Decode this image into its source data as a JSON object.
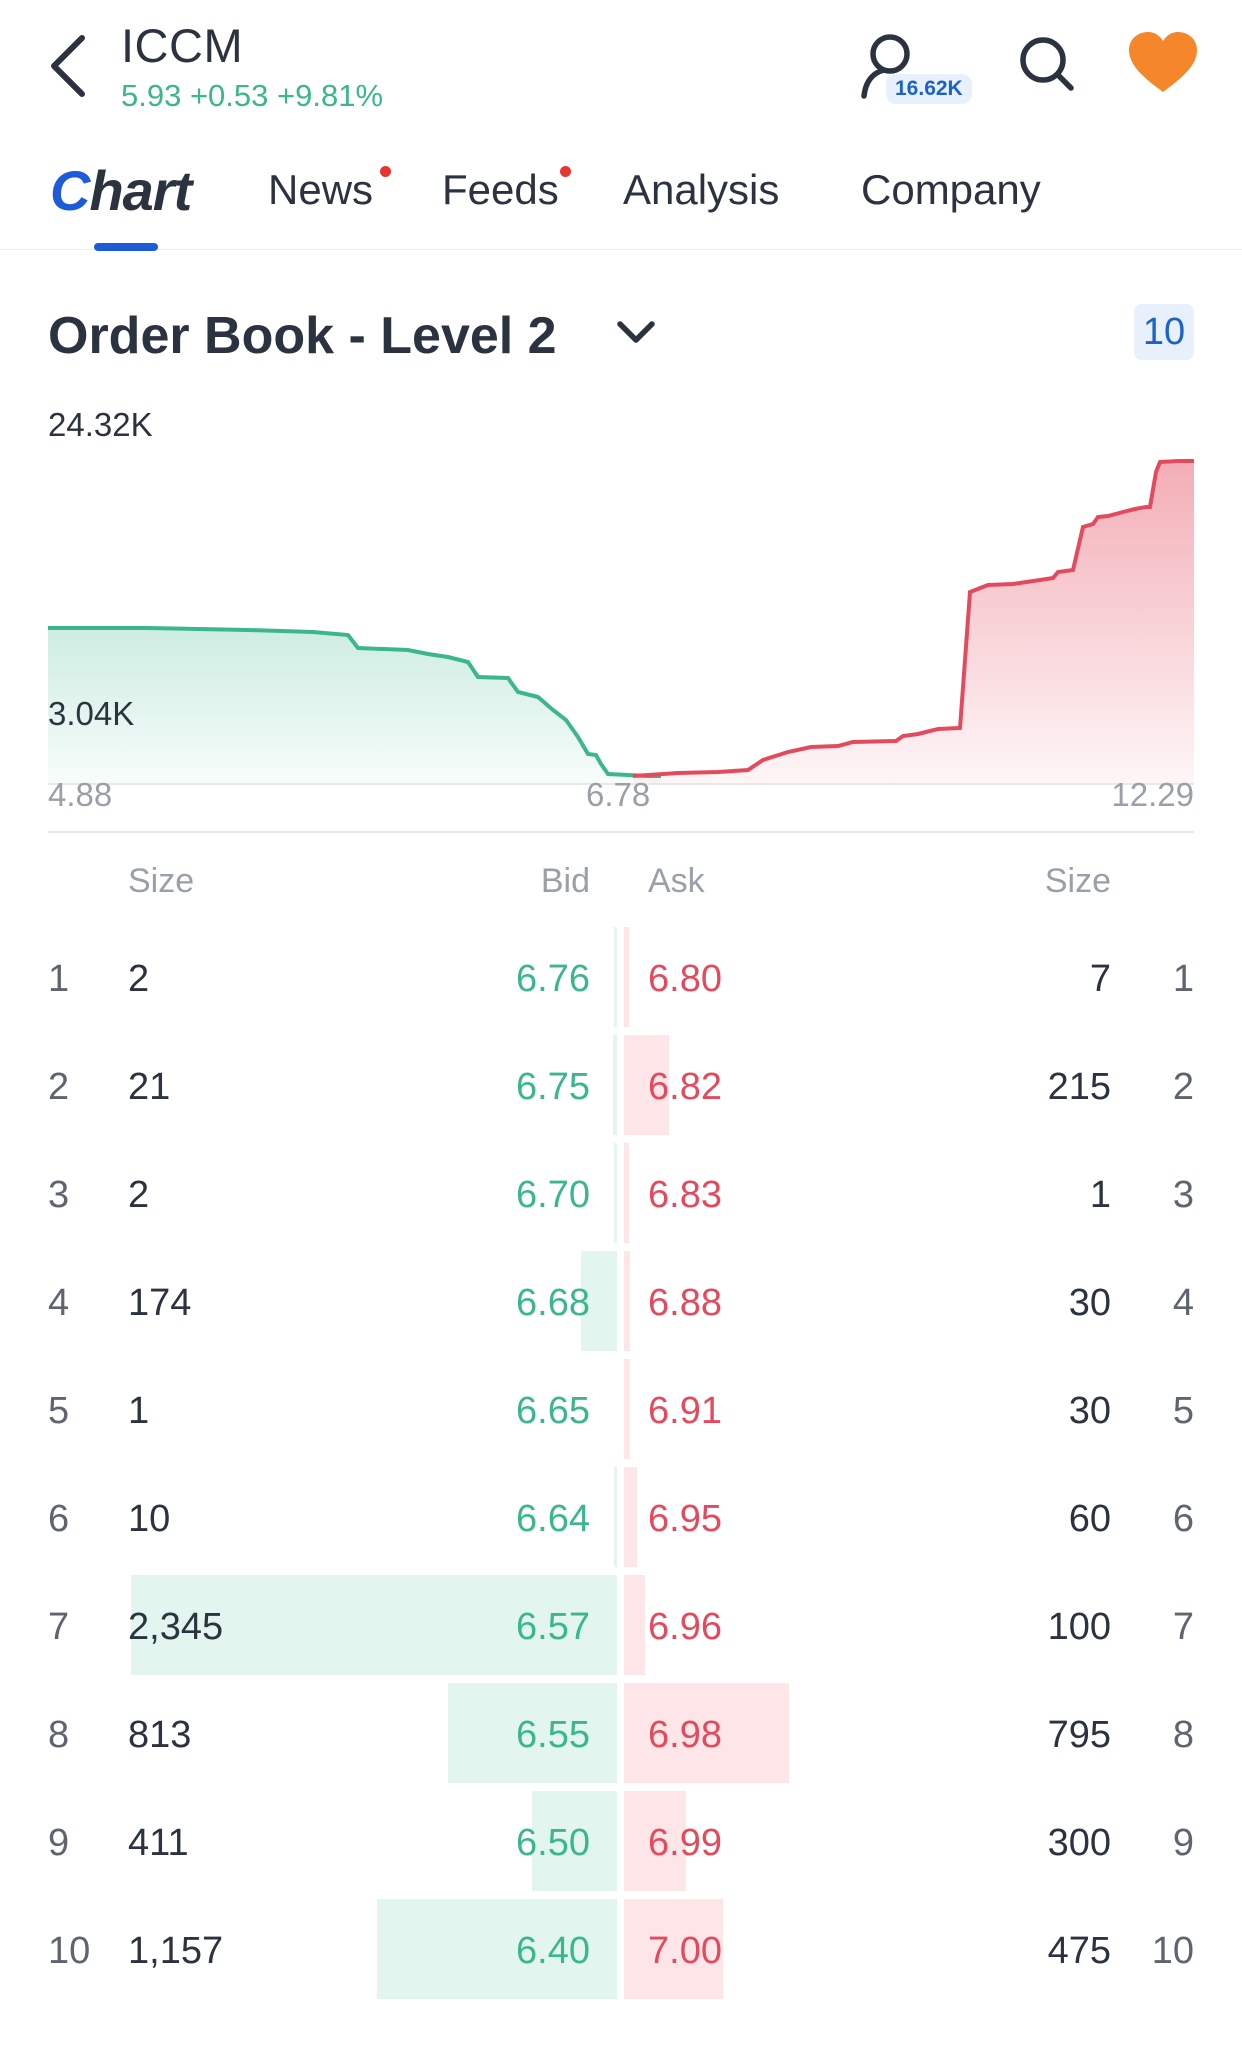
{
  "header": {
    "ticker": "ICCM",
    "quote": "5.93 +0.53 +9.81%",
    "followers": "16.62K"
  },
  "tabs": [
    {
      "label": "Chart",
      "active": true,
      "dot": false
    },
    {
      "label": "News",
      "active": false,
      "dot": true
    },
    {
      "label": "Feeds",
      "active": false,
      "dot": true
    },
    {
      "label": "Analysis",
      "active": false,
      "dot": false
    },
    {
      "label": "Company",
      "active": false,
      "dot": false
    }
  ],
  "order_book": {
    "title": "Order Book - Level 2",
    "depth_setting": "10",
    "depth_chart": {
      "y_max_label": "24.32K",
      "y_mid_label": "3.04K",
      "x_labels": [
        "4.88",
        "6.78",
        "12.29"
      ],
      "bid_color": "#3bb68e",
      "ask_color": "#e44a5d"
    },
    "columns": {
      "bid_size": "Size",
      "bid": "Bid",
      "ask": "Ask",
      "ask_size": "Size"
    },
    "rows": [
      {
        "level": "1",
        "bid_size": "2",
        "bid": "6.76",
        "ask": "6.80",
        "ask_size": "7",
        "bid_fill": 0.002,
        "ask_fill": 0.003
      },
      {
        "level": "2",
        "bid_size": "21",
        "bid": "6.75",
        "ask": "6.82",
        "ask_size": "215",
        "bid_fill": 0.009,
        "ask_fill": 0.092
      },
      {
        "level": "3",
        "bid_size": "2",
        "bid": "6.70",
        "ask": "6.83",
        "ask_size": "1",
        "bid_fill": 0.001,
        "ask_fill": 0.0
      },
      {
        "level": "4",
        "bid_size": "174",
        "bid": "6.68",
        "ask": "6.88",
        "ask_size": "30",
        "bid_fill": 0.074,
        "ask_fill": 0.013
      },
      {
        "level": "5",
        "bid_size": "1",
        "bid": "6.65",
        "ask": "6.91",
        "ask_size": "30",
        "bid_fill": 0.0,
        "ask_fill": 0.013
      },
      {
        "level": "6",
        "bid_size": "10",
        "bid": "6.64",
        "ask": "6.95",
        "ask_size": "60",
        "bid_fill": 0.004,
        "ask_fill": 0.026
      },
      {
        "level": "7",
        "bid_size": "2,345",
        "bid": "6.57",
        "ask": "6.96",
        "ask_size": "100",
        "bid_fill": 1.0,
        "ask_fill": 0.043
      },
      {
        "level": "8",
        "bid_size": "813",
        "bid": "6.55",
        "ask": "6.98",
        "ask_size": "795",
        "bid_fill": 0.347,
        "ask_fill": 0.339
      },
      {
        "level": "9",
        "bid_size": "411",
        "bid": "6.50",
        "ask": "6.99",
        "ask_size": "300",
        "bid_fill": 0.175,
        "ask_fill": 0.128
      },
      {
        "level": "10",
        "bid_size": "1,157",
        "bid": "6.40",
        "ask": "7.00",
        "ask_size": "475",
        "bid_fill": 0.493,
        "ask_fill": 0.203
      }
    ]
  }
}
